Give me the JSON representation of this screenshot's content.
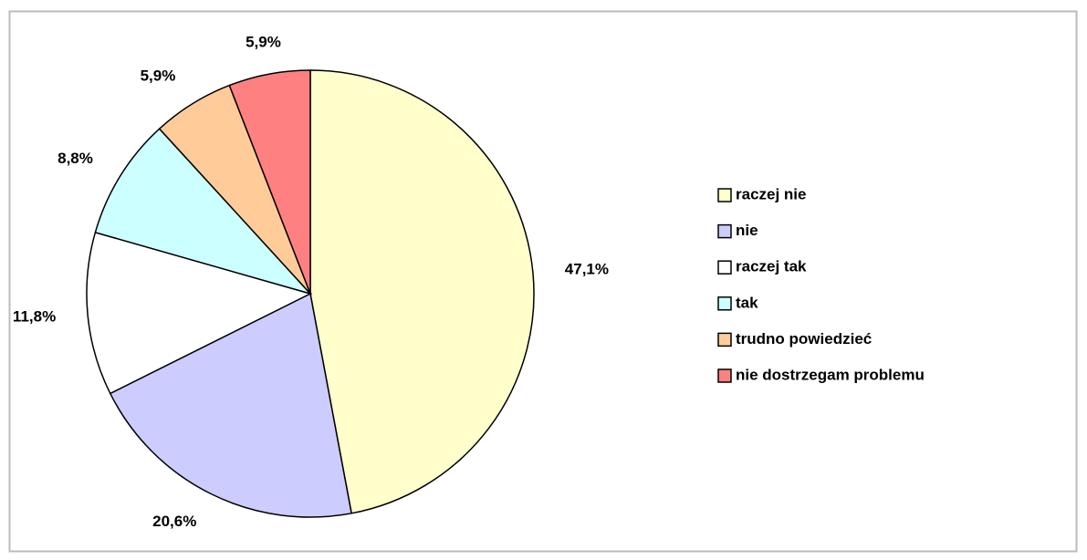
{
  "chart_data": {
    "type": "pie",
    "categories": [
      "raczej nie",
      "nie",
      "raczej tak",
      "tak",
      "trudno powiedzieć",
      "nie dostrzegam problemu"
    ],
    "values": [
      47.1,
      20.6,
      11.8,
      8.8,
      5.9,
      5.9
    ],
    "value_labels": [
      "47,1%",
      "20,6%",
      "11,8%",
      "8,8%",
      "5,9%",
      "5,9%"
    ],
    "colors": [
      "#ffffcc",
      "#ccccff",
      "#ffffff",
      "#ccffff",
      "#ffcc99",
      "#ff8080"
    ],
    "legend": "right"
  }
}
